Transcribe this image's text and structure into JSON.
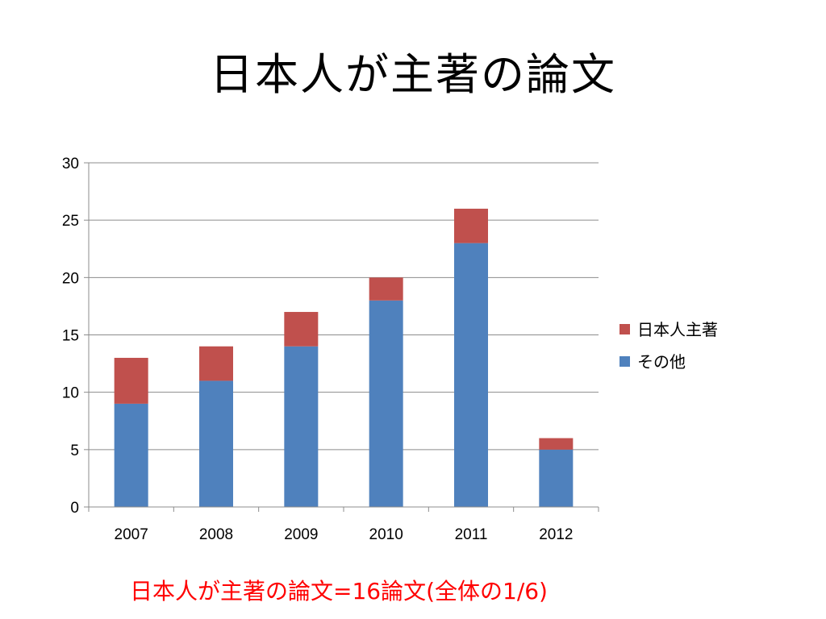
{
  "slide": {
    "title": "日本人が主著の論文",
    "footnote": "日本人が主著の論文=16論文(全体の1/6)"
  },
  "chart_data": {
    "type": "bar",
    "stacked": true,
    "title": "",
    "xlabel": "",
    "ylabel": "",
    "categories": [
      "2007",
      "2008",
      "2009",
      "2010",
      "2011",
      "2012"
    ],
    "series": [
      {
        "name": "その他",
        "values": [
          9,
          11,
          14,
          18,
          23,
          5
        ],
        "color": "#4f81bd"
      },
      {
        "name": "日本人主著",
        "values": [
          4,
          3,
          3,
          2,
          3,
          1
        ],
        "color": "#c0504d"
      }
    ],
    "legend_order": [
      "日本人主著",
      "その他"
    ],
    "ylim": [
      0,
      30
    ],
    "yticks": [
      "0",
      "5",
      "10",
      "15",
      "20",
      "25",
      "30"
    ],
    "grid": true,
    "legend_position": "right",
    "gridline_color": "#8c8c8c",
    "axis_color": "#8c8c8c"
  }
}
